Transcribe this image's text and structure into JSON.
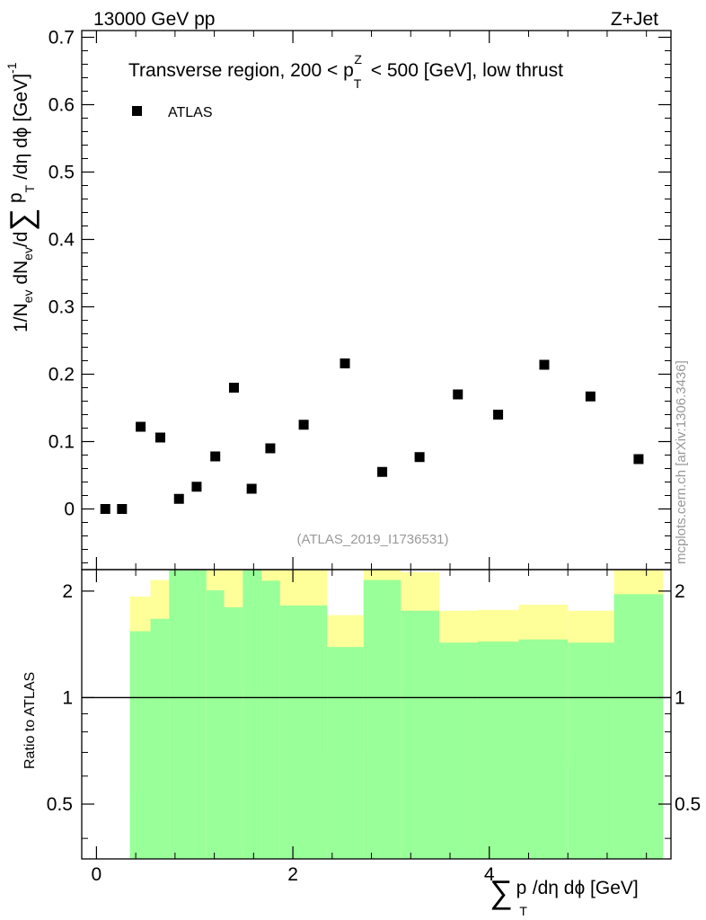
{
  "header": {
    "energy_label": "13000 GeV pp",
    "process_label": "Z+Jet"
  },
  "chart_data": {
    "type": "scatter",
    "title": "Transverse region, 200 < p",
    "title_sup": "Z",
    "title_sub": "T",
    "title_rest": " < 500 [GeV], low thrust",
    "legend": [
      {
        "name": "ATLAS",
        "marker": "square",
        "placement": "top-left"
      }
    ],
    "analysis_label": "(ATLAS_2019_I1736531)",
    "watermark": "mcplots.cern.ch [arXiv:1306.3436]",
    "ylabel": "1/N_ev dN_ev/dΣ p_T/dη dφ [GeV]^-1",
    "ylabel_parts": {
      "a": "1/N",
      "b": "ev",
      "c": " dN",
      "d": "ev",
      "e": "/d",
      "sigma": "∑",
      "f": " p",
      "g": "T",
      "h": " /dη dϕ  [GeV]",
      "i": "-1"
    },
    "xlabel_parts": {
      "sigma": "∑",
      "a": "p",
      "b": "T",
      "c": " /dη dϕ [GeV]"
    },
    "xlim": [
      -0.15,
      5.85
    ],
    "ylim": [
      -0.09,
      0.71
    ],
    "yticks": [
      0,
      0.1,
      0.2,
      0.3,
      0.4,
      0.5,
      0.6,
      0.7
    ],
    "ytick_labels": [
      "0",
      "0.1",
      "0.2",
      "0.3",
      "0.4",
      "0.5",
      "0.6",
      "0.7"
    ],
    "xticks": [
      0,
      2,
      4
    ],
    "xtick_labels": [
      "0",
      "2",
      "4"
    ],
    "series": [
      {
        "name": "ATLAS",
        "x": [
          0.09,
          0.26,
          0.45,
          0.65,
          0.84,
          1.02,
          1.21,
          1.4,
          1.58,
          1.77,
          2.11,
          2.53,
          2.91,
          3.29,
          3.68,
          4.09,
          4.56,
          5.03,
          5.52
        ],
        "y": [
          0.0,
          0.0,
          0.122,
          0.106,
          0.015,
          0.033,
          0.078,
          0.18,
          0.03,
          0.09,
          0.125,
          0.216,
          0.055,
          0.077,
          0.17,
          0.14,
          0.214,
          0.167,
          0.074
        ]
      }
    ],
    "ratio": {
      "ylabel": "Ratio to ATLAS",
      "ylim": [
        0.35,
        2.3
      ],
      "yticks": [
        0.5,
        1,
        2
      ],
      "ytick_labels": [
        "0.5",
        "1",
        "2"
      ],
      "reference": 1,
      "bands": [
        {
          "x0": 0.34,
          "x1": 0.55,
          "green": [
            0.35,
            1.54
          ],
          "yellow": [
            0.54,
            1.93
          ]
        },
        {
          "x0": 0.55,
          "x1": 0.74,
          "green": [
            0.35,
            1.67
          ],
          "yellow": [
            0.35,
            2.15
          ]
        },
        {
          "x0": 0.74,
          "x1": 1.12,
          "green": [
            0.35,
            2.3
          ],
          "yellow": [
            0.35,
            2.3
          ]
        },
        {
          "x0": 1.12,
          "x1": 1.3,
          "green": [
            0.35,
            2.01
          ],
          "yellow": [
            0.35,
            2.3
          ]
        },
        {
          "x0": 1.3,
          "x1": 1.49,
          "green": [
            0.35,
            1.8
          ],
          "yellow": [
            0.35,
            2.3
          ]
        },
        {
          "x0": 1.49,
          "x1": 1.68,
          "green": [
            0.35,
            2.3
          ],
          "yellow": [
            0.35,
            2.3
          ]
        },
        {
          "x0": 1.68,
          "x1": 1.87,
          "green": [
            0.35,
            2.14
          ],
          "yellow": [
            0.35,
            2.3
          ]
        },
        {
          "x0": 1.87,
          "x1": 2.35,
          "green": [
            0.35,
            1.82
          ],
          "yellow": [
            0.35,
            2.3
          ]
        },
        {
          "x0": 2.35,
          "x1": 2.72,
          "green": [
            0.35,
            1.39
          ],
          "yellow": [
            0.71,
            1.71
          ]
        },
        {
          "x0": 2.72,
          "x1": 3.1,
          "green": [
            0.35,
            2.15
          ],
          "yellow": [
            0.35,
            2.3
          ]
        },
        {
          "x0": 3.1,
          "x1": 3.49,
          "green": [
            0.35,
            1.76
          ],
          "yellow": [
            0.35,
            2.26
          ]
        },
        {
          "x0": 3.49,
          "x1": 3.88,
          "green": [
            0.35,
            1.43
          ],
          "yellow": [
            0.69,
            1.76
          ]
        },
        {
          "x0": 3.88,
          "x1": 4.3,
          "green": [
            0.35,
            1.44
          ],
          "yellow": [
            0.68,
            1.77
          ]
        },
        {
          "x0": 4.3,
          "x1": 4.8,
          "green": [
            0.35,
            1.46
          ],
          "yellow": [
            0.64,
            1.83
          ]
        },
        {
          "x0": 4.8,
          "x1": 5.27,
          "green": [
            0.35,
            1.43
          ],
          "yellow": [
            0.69,
            1.76
          ]
        },
        {
          "x0": 5.27,
          "x1": 5.77,
          "green": [
            0.35,
            1.96
          ],
          "yellow": [
            0.35,
            2.3
          ]
        }
      ]
    }
  }
}
